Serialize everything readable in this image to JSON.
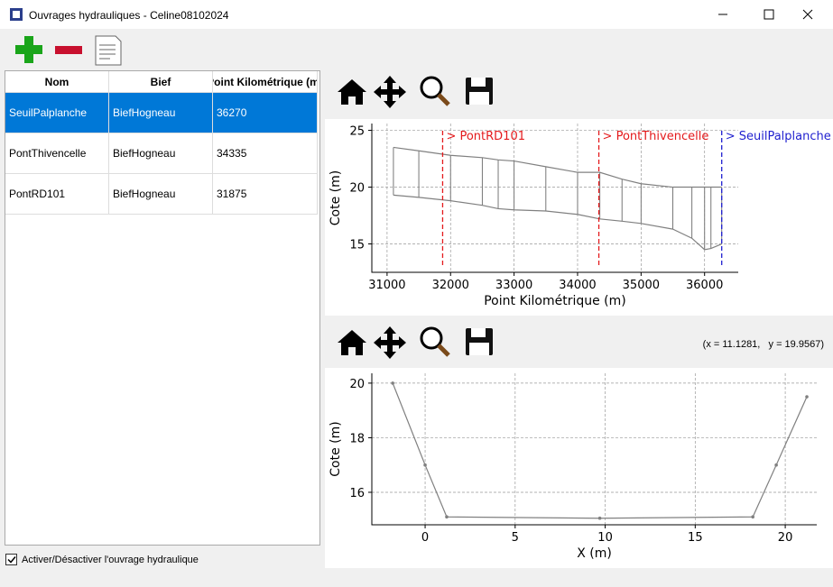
{
  "window": {
    "title": "Ouvrages hydrauliques - Celine08102024"
  },
  "table": {
    "headers": [
      "Nom",
      "Bief",
      "Point Kilométrique (m)"
    ],
    "rows": [
      [
        "SeuilPalplanche",
        "BiefHogneau",
        36270
      ],
      [
        "PontThivencelle",
        "BiefHogneau",
        34335
      ],
      [
        "PontRD101",
        "BiefHogneau",
        31875
      ]
    ]
  },
  "checkbox": {
    "label": "Activer/Désactiver l'ouvrage hydraulique",
    "checked": true
  },
  "coords": "(x = 11.1281,   y = 19.9567)",
  "chart_data": [
    {
      "type": "profile",
      "x": [
        31100,
        31500,
        32000,
        32500,
        32750,
        33000,
        33500,
        34000,
        34350,
        34700,
        35000,
        35500,
        35800,
        36000,
        36100,
        36270
      ],
      "series": [
        {
          "color": "#808080",
          "values": [
            23.5,
            23.2,
            22.8,
            22.6,
            22.4,
            22.3,
            21.8,
            21.3,
            21.3,
            20.7,
            20.3,
            20.0,
            20.0,
            20.0,
            20.0,
            20.0
          ]
        },
        {
          "color": "#808080",
          "values": [
            19.3,
            19.1,
            18.8,
            18.4,
            18.1,
            18.0,
            17.9,
            17.6,
            17.2,
            17.0,
            16.8,
            16.3,
            15.5,
            14.5,
            14.6,
            15.0
          ]
        }
      ],
      "annotations": [
        {
          "x": 31875,
          "label": "> PontRD101",
          "color": "#e41a1c"
        },
        {
          "x": 34335,
          "label": "> PontThivencelle",
          "color": "#e41a1c"
        },
        {
          "x": 36270,
          "label": "> SeuilPalplanche",
          "color": "#1f1fcf"
        }
      ],
      "xlabel": "Point Kilométrique (m)",
      "ylabel": "Cote (m)",
      "xlim": [
        30760,
        36530
      ],
      "ylim": [
        12.5,
        25.6
      ],
      "xticks": [
        31000,
        32000,
        33000,
        34000,
        35000,
        36000
      ],
      "yticks": [
        15,
        20,
        25
      ],
      "grid": true
    },
    {
      "type": "line",
      "x": [
        -1.8,
        0,
        1.2,
        9.7,
        18.2,
        19.5,
        21.2
      ],
      "series": [
        {
          "color": "#808080",
          "values": [
            20,
            17,
            15.1,
            15.05,
            15.1,
            17,
            19.5
          ]
        }
      ],
      "xlabel": "X (m)",
      "ylabel": "Cote (m)",
      "xlim": [
        -2.96,
        21.75
      ],
      "ylim": [
        14.81,
        20.36
      ],
      "xticks": [
        0,
        5,
        10,
        15,
        20
      ],
      "yticks": [
        16,
        18,
        20
      ],
      "grid": true
    }
  ]
}
